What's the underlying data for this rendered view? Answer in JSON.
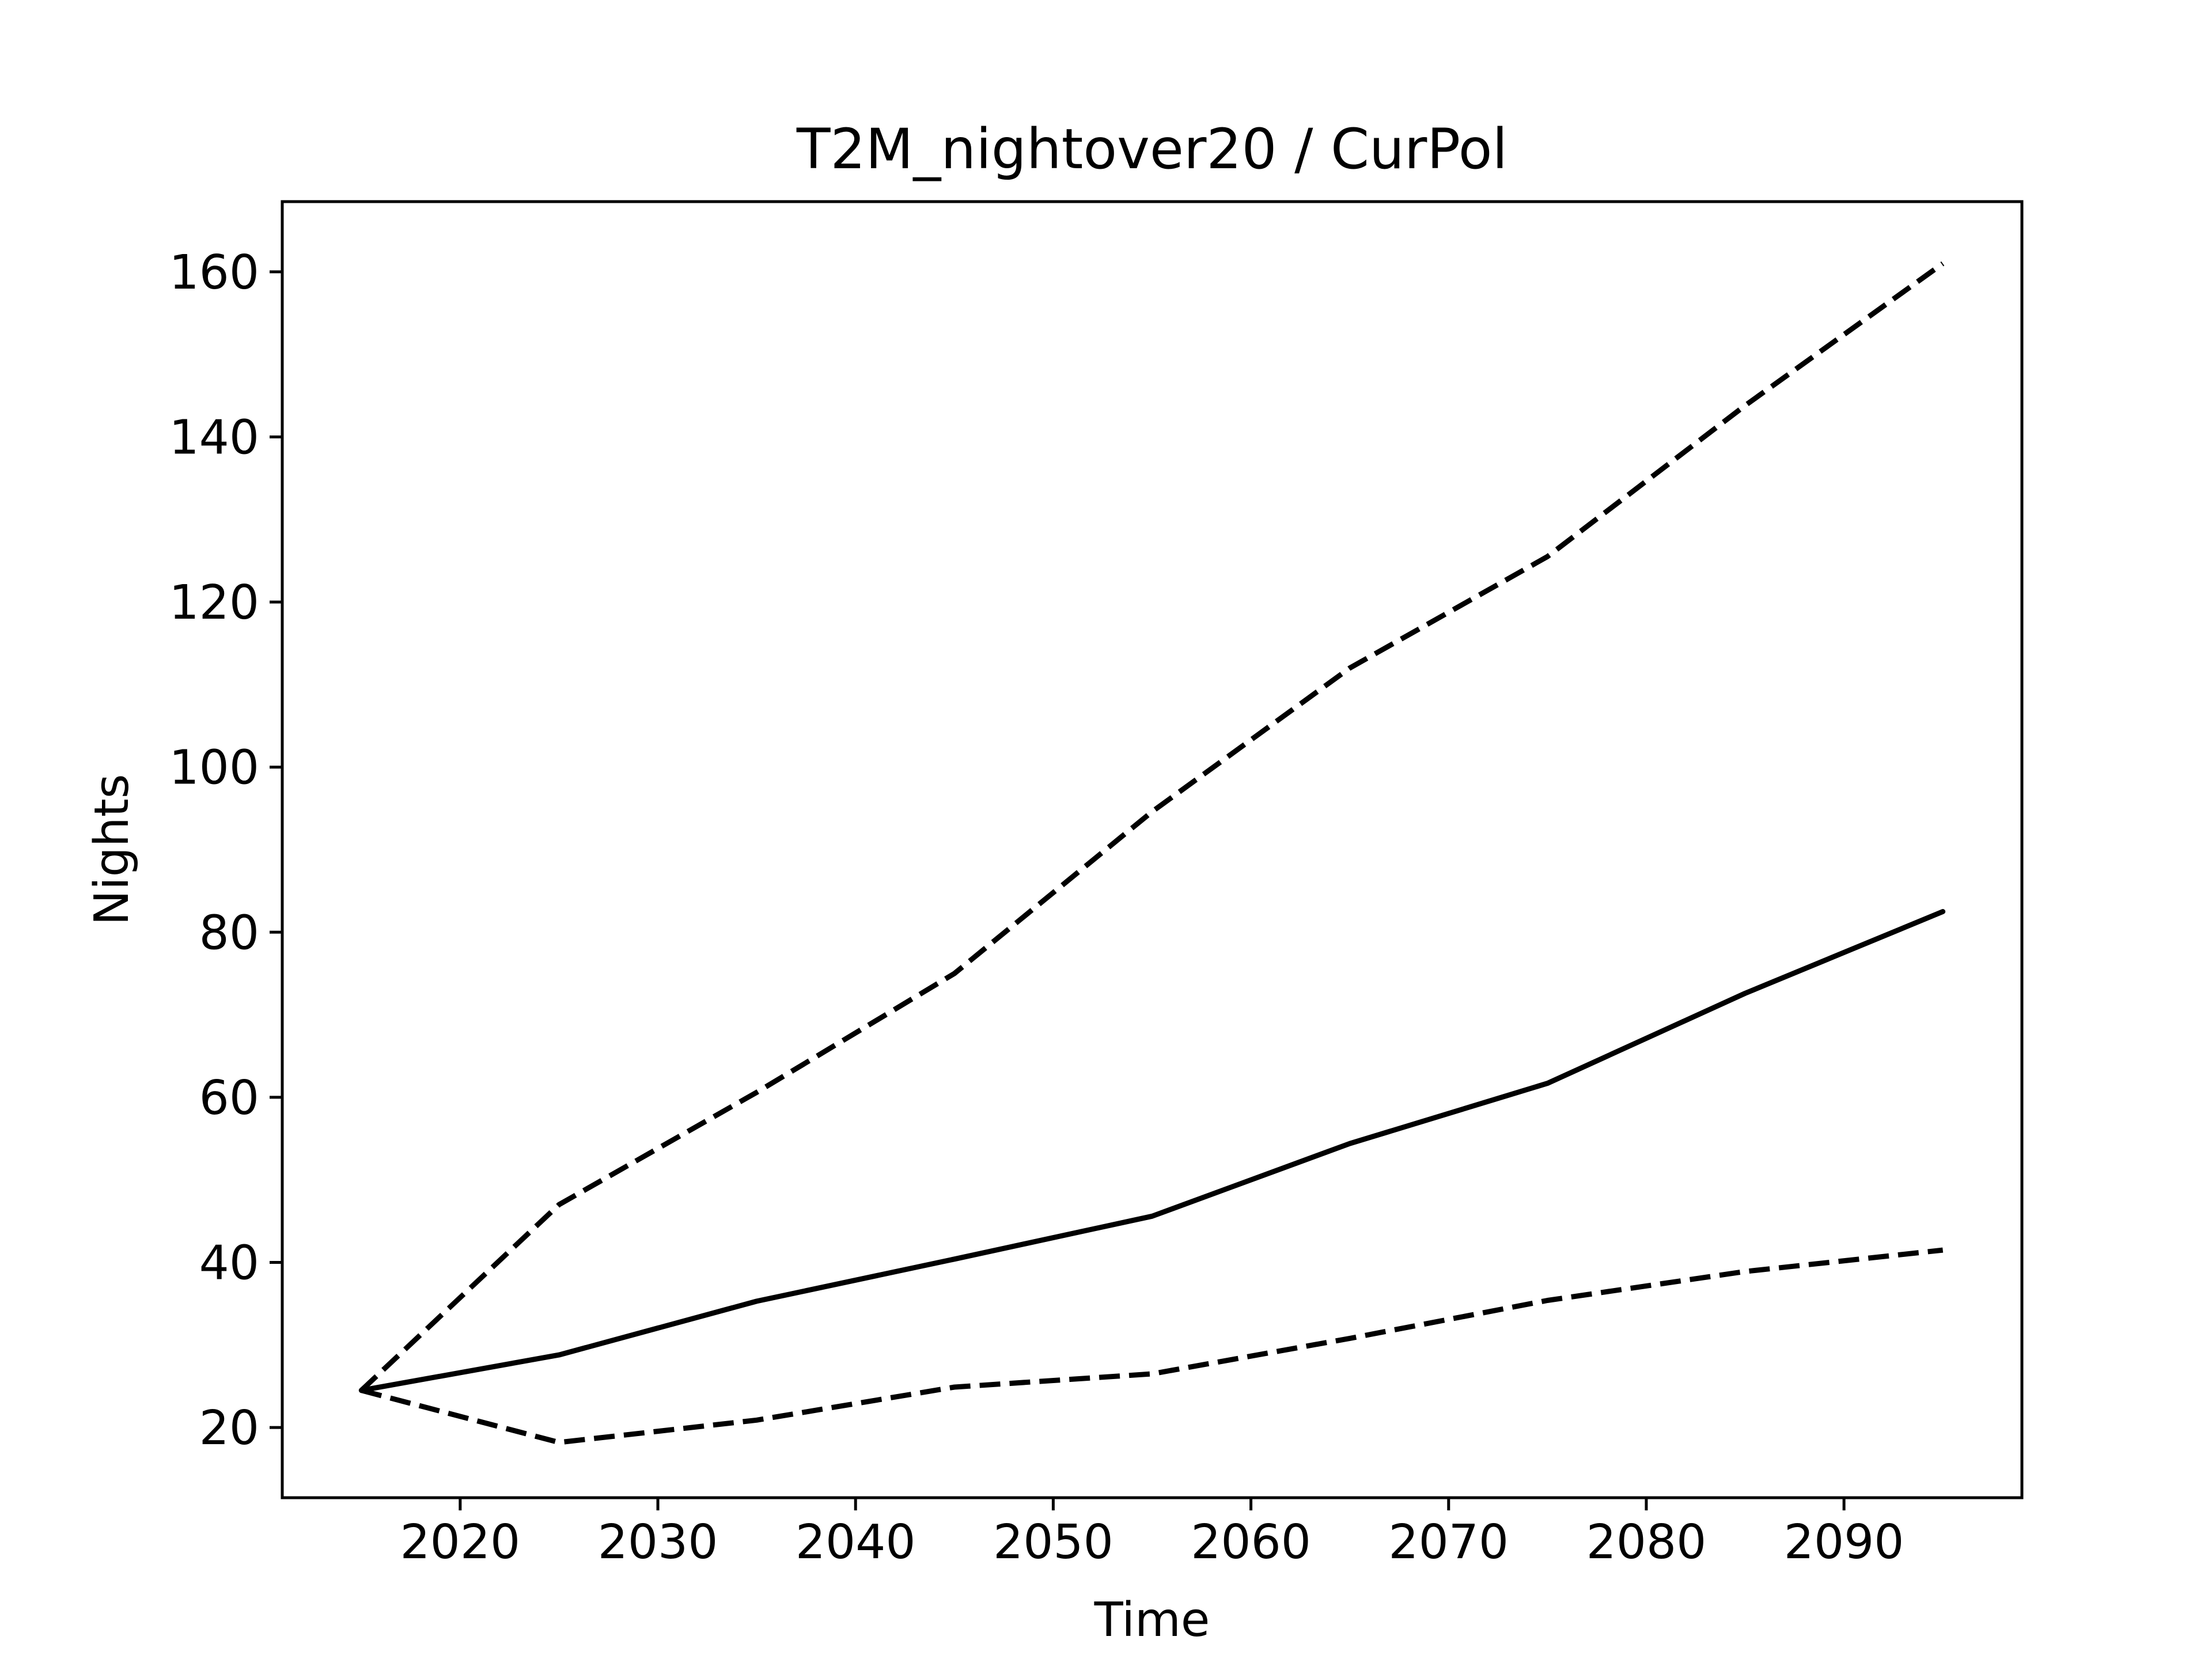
{
  "chart_data": {
    "type": "line",
    "title": "T2M_nightover20 / CurPol",
    "xlabel": "Time",
    "ylabel": "Nights",
    "xlim": [
      2011,
      2099
    ],
    "ylim": [
      11.5,
      168.5
    ],
    "xticks": [
      2020,
      2030,
      2040,
      2050,
      2060,
      2070,
      2080,
      2090
    ],
    "yticks": [
      20,
      40,
      60,
      80,
      100,
      120,
      140,
      160
    ],
    "grid": false,
    "legend": "none",
    "x": [
      2015,
      2025,
      2035,
      2045,
      2055,
      2065,
      2075,
      2085,
      2095
    ],
    "series": [
      {
        "style": "solid",
        "color": "#000000",
        "values": [
          24.5,
          28.8,
          35.3,
          40.4,
          45.6,
          54.4,
          61.7,
          72.6,
          82.5
        ]
      },
      {
        "style": "dashed",
        "color": "#000000",
        "values": [
          24.5,
          47.0,
          60.6,
          75.0,
          94.6,
          112.0,
          125.5,
          143.8,
          161.0
        ]
      },
      {
        "style": "dashed",
        "color": "#000000",
        "values": [
          24.5,
          18.2,
          20.9,
          24.9,
          26.5,
          30.8,
          35.4,
          38.9,
          41.5
        ]
      }
    ]
  }
}
